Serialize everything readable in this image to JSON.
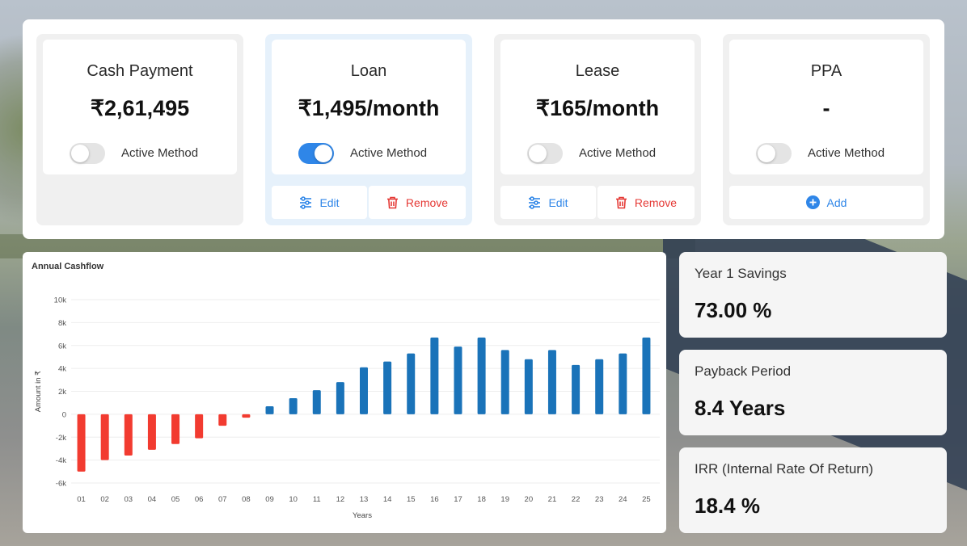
{
  "methods": [
    {
      "title": "Cash Payment",
      "price": "₹2,61,495",
      "toggle_label": "Active Method",
      "active": false
    },
    {
      "title": "Loan",
      "price": "₹1,495/month",
      "toggle_label": "Active Method",
      "active": true,
      "edit_label": "Edit",
      "remove_label": "Remove"
    },
    {
      "title": "Lease",
      "price": "₹165/month",
      "toggle_label": "Active Method",
      "active": false,
      "edit_label": "Edit",
      "remove_label": "Remove"
    },
    {
      "title": "PPA",
      "price": "-",
      "toggle_label": "Active Method",
      "active": false,
      "add_label": "Add"
    }
  ],
  "colors": {
    "accent": "#2f86e8",
    "danger": "#e53935",
    "positive_bar": "#1a73b9",
    "negative_bar": "#f23b30"
  },
  "chart_data": {
    "type": "bar",
    "title": "Annual Cashflow",
    "xlabel": "Years",
    "ylabel": "Amount in ₹",
    "ylim": [
      -6000,
      10000
    ],
    "yticks": [
      10000,
      8000,
      6000,
      4000,
      2000,
      0,
      -2000,
      -4000,
      -6000
    ],
    "ytick_labels": [
      "10k",
      "8k",
      "6k",
      "4k",
      "2k",
      "0",
      "-2k",
      "-4k",
      "-6k"
    ],
    "categories": [
      "01",
      "02",
      "03",
      "04",
      "05",
      "06",
      "07",
      "08",
      "09",
      "10",
      "11",
      "12",
      "13",
      "14",
      "15",
      "16",
      "17",
      "18",
      "19",
      "20",
      "21",
      "22",
      "23",
      "24",
      "25"
    ],
    "values": [
      -5000,
      -4000,
      -3600,
      -3100,
      -2600,
      -2100,
      -1000,
      -300,
      700,
      1400,
      2100,
      2800,
      4100,
      4600,
      5300,
      6700,
      5900,
      6700,
      5600,
      4800,
      5600,
      4300,
      4800,
      5300,
      6700
    ],
    "grid": true
  },
  "stats": [
    {
      "label": "Year 1 Savings",
      "value": "73.00 %"
    },
    {
      "label": "Payback Period",
      "value": "8.4 Years"
    },
    {
      "label": "IRR (Internal Rate Of Return)",
      "value": "18.4 %"
    }
  ]
}
